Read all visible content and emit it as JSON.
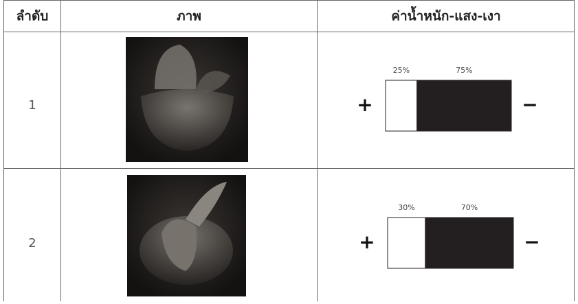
{
  "table": {
    "header": [
      "ลำดับ",
      "ภาพ",
      "ค่าน้ำหนัก-แสง-เงา"
    ],
    "scale_ends": {
      "light": "+",
      "dark": "−"
    },
    "rows": [
      {
        "number": "1",
        "values": [
          25,
          75
        ],
        "value_labels": [
          "25%",
          "75%"
        ]
      },
      {
        "number": "2",
        "values": [
          30,
          70
        ],
        "value_labels": [
          "30%",
          "70%"
        ]
      }
    ]
  }
}
